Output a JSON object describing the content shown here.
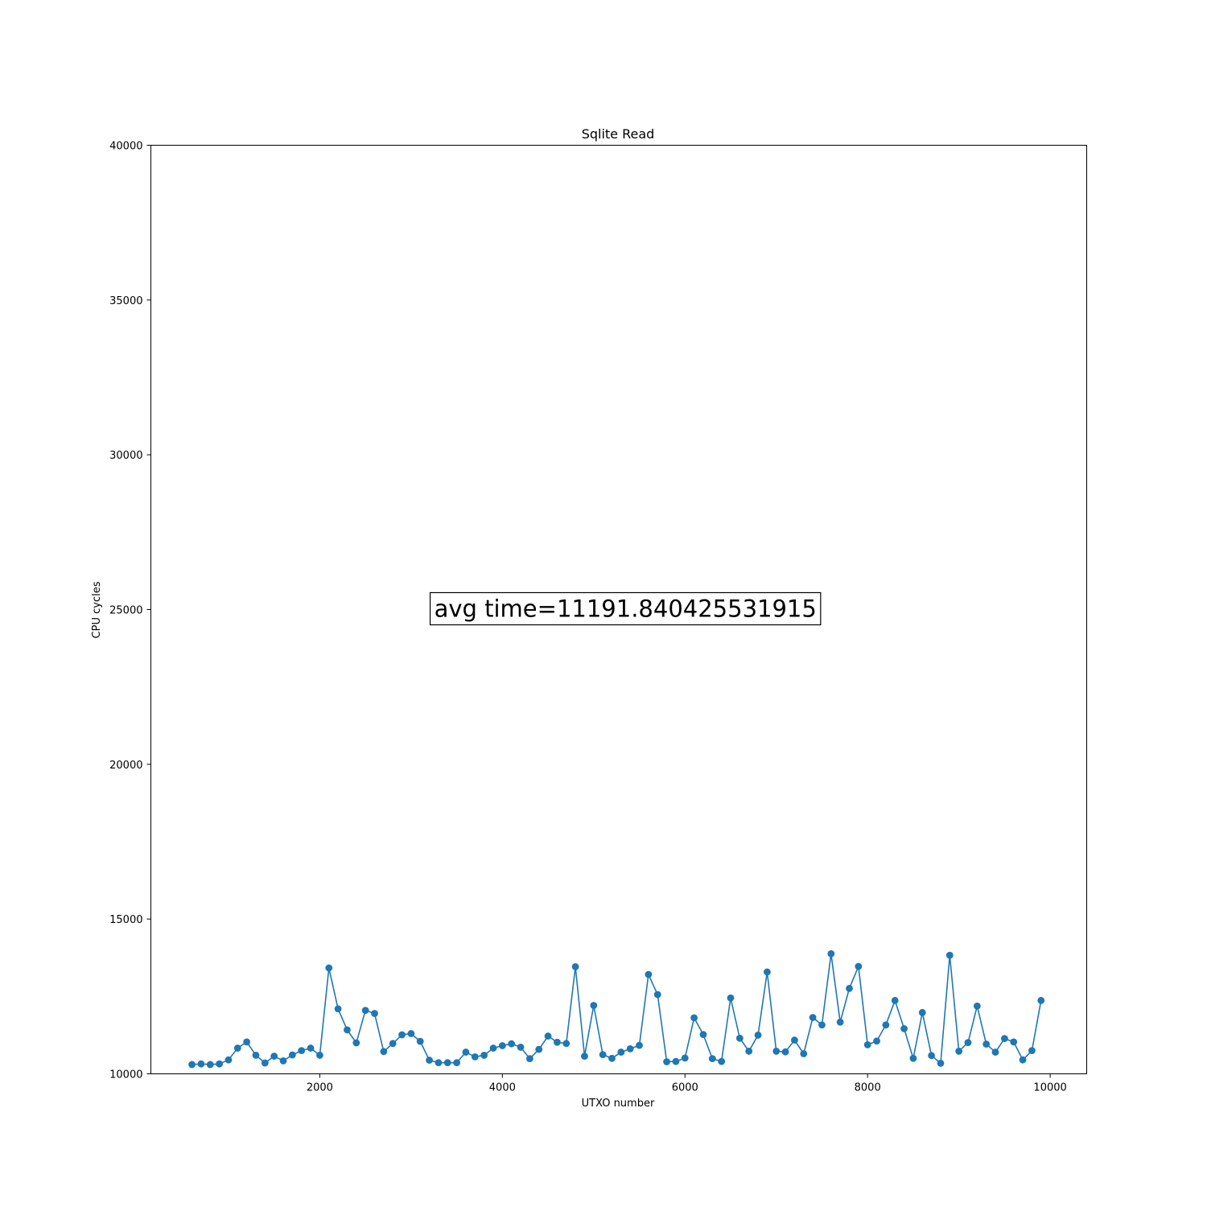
{
  "chart_data": {
    "type": "line",
    "title": "Sqlite Read",
    "xlabel": "UTXO number",
    "ylabel": "CPU cycles",
    "xlim": [
      150,
      10400
    ],
    "ylim": [
      10000,
      40000
    ],
    "xticks": [
      2000,
      4000,
      6000,
      8000,
      10000
    ],
    "yticks": [
      10000,
      15000,
      20000,
      25000,
      30000,
      35000,
      40000
    ],
    "grid": false,
    "annotation": {
      "text": "avg time=11191.840425531915",
      "x": 3200,
      "y": 25000
    },
    "series": [
      {
        "color": "#1f77b4",
        "marker": "circle",
        "x": [
          600,
          700,
          800,
          900,
          1000,
          1100,
          1200,
          1300,
          1400,
          1500,
          1600,
          1700,
          1800,
          1900,
          2000,
          2100,
          2200,
          2300,
          2400,
          2500,
          2600,
          2700,
          2800,
          2900,
          3000,
          3100,
          3200,
          3300,
          3400,
          3500,
          3600,
          3700,
          3800,
          3900,
          4000,
          4100,
          4200,
          4300,
          4400,
          4500,
          4600,
          4700,
          4800,
          4900,
          5000,
          5100,
          5200,
          5300,
          5400,
          5500,
          5600,
          5700,
          5800,
          5900,
          6000,
          6100,
          6200,
          6300,
          6400,
          6500,
          6600,
          6700,
          6800,
          6900,
          7000,
          7100,
          7200,
          7300,
          7400,
          7500,
          7600,
          7700,
          7800,
          7900,
          8000,
          8100,
          8200,
          8300,
          8400,
          8500,
          8600,
          8700,
          8800,
          8900,
          9000,
          9100,
          9200,
          9300,
          9400,
          9500,
          9600,
          9700,
          9800,
          9900
        ],
        "y": [
          10300,
          10320,
          10300,
          10320,
          10450,
          10830,
          11030,
          10600,
          10350,
          10570,
          10420,
          10610,
          10750,
          10830,
          10600,
          13420,
          12100,
          11420,
          11000,
          12050,
          11950,
          10720,
          10980,
          11260,
          11300,
          11050,
          10440,
          10360,
          10360,
          10360,
          10700,
          10550,
          10600,
          10830,
          10910,
          10970,
          10860,
          10490,
          10790,
          11220,
          11020,
          10980,
          13460,
          10570,
          12210,
          10620,
          10500,
          10700,
          10810,
          10920,
          13210,
          12560,
          10390,
          10400,
          10510,
          11810,
          11270,
          10490,
          10400,
          12450,
          11150,
          10730,
          11250,
          13290,
          10730,
          10710,
          11090,
          10650,
          11820,
          11580,
          13880,
          11670,
          12760,
          13470,
          10940,
          11060,
          11580,
          12370,
          11460,
          10500,
          11980,
          10590,
          10340,
          13830,
          10730,
          11010,
          12190,
          10960,
          10700,
          11140,
          11030,
          10450,
          10750,
          12370
        ]
      }
    ]
  }
}
